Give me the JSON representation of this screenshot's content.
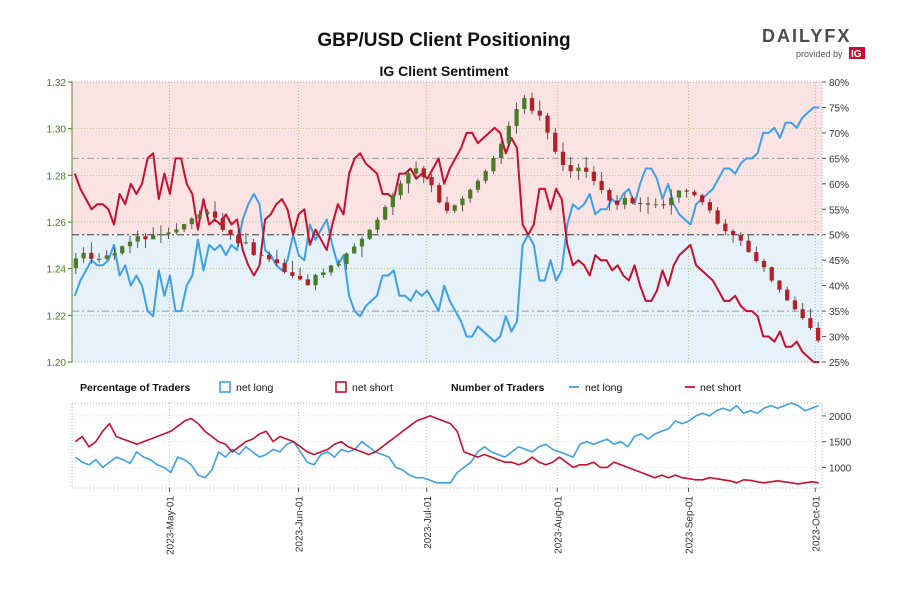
{
  "header": {
    "title": "GBP/USD Client Positioning",
    "logo_text": "DAILYFX",
    "logo_sub": "provided by",
    "logo_brand": "IG"
  },
  "chart_data": [
    {
      "type": "candlestick",
      "title": "IG Client Sentiment",
      "y_left_ticks": [
        "1.32",
        "1.30",
        "1.28",
        "1.26",
        "1.24",
        "1.22",
        "1.20"
      ],
      "ylim_left": [
        1.2,
        1.32
      ],
      "y_right_ticks": [
        "80%",
        "75%",
        "70%",
        "65%",
        "60%",
        "55%",
        "50%",
        "45%",
        "40%",
        "35%",
        "30%",
        "25%"
      ],
      "ylim_right": [
        25,
        80
      ],
      "reference_levels_percent": [
        50,
        65,
        35
      ],
      "candles": [
        [
          1.2403,
          1.2467,
          1.2377,
          1.2444
        ],
        [
          1.2444,
          1.2492,
          1.2424,
          1.2468
        ],
        [
          1.2468,
          1.2513,
          1.2422,
          1.2442
        ],
        [
          1.2442,
          1.2466,
          1.2423,
          1.2442
        ],
        [
          1.2442,
          1.2479,
          1.2438,
          1.2457
        ],
        [
          1.2457,
          1.2492,
          1.2436,
          1.2466
        ],
        [
          1.2466,
          1.25,
          1.2459,
          1.2496
        ],
        [
          1.2496,
          1.2541,
          1.2466,
          1.2516
        ],
        [
          1.2516,
          1.2563,
          1.2488,
          1.2539
        ],
        [
          1.2539,
          1.2553,
          1.2488,
          1.2526
        ],
        [
          1.2526,
          1.2578,
          1.2526,
          1.2543
        ],
        [
          1.2543,
          1.2585,
          1.251,
          1.2548
        ],
        [
          1.2548,
          1.2577,
          1.2527,
          1.2555
        ],
        [
          1.2555,
          1.2595,
          1.2547,
          1.2568
        ],
        [
          1.2568,
          1.2592,
          1.2556,
          1.2591
        ],
        [
          1.2591,
          1.2622,
          1.257,
          1.2615
        ],
        [
          1.2615,
          1.265,
          1.2605,
          1.2633
        ],
        [
          1.2633,
          1.2655,
          1.2618,
          1.2645
        ],
        [
          1.2645,
          1.2688,
          1.26,
          1.2618
        ],
        [
          1.2618,
          1.2639,
          1.2557,
          1.2566
        ],
        [
          1.2566,
          1.2569,
          1.2524,
          1.2543
        ],
        [
          1.2543,
          1.2568,
          1.2493,
          1.2509
        ],
        [
          1.2509,
          1.2553,
          1.2503,
          1.2513
        ],
        [
          1.2513,
          1.2528,
          1.2455,
          1.2459
        ],
        [
          1.2459,
          1.25,
          1.2456,
          1.2459
        ],
        [
          1.2459,
          1.2473,
          1.2428,
          1.244
        ],
        [
          1.244,
          1.248,
          1.2412,
          1.2424
        ],
        [
          1.2424,
          1.2443,
          1.2377,
          1.2385
        ],
        [
          1.2385,
          1.2433,
          1.236,
          1.2369
        ],
        [
          1.2369,
          1.2405,
          1.235,
          1.2354
        ],
        [
          1.2354,
          1.2376,
          1.2327,
          1.2329
        ],
        [
          1.2329,
          1.2378,
          1.2307,
          1.2373
        ],
        [
          1.2373,
          1.24,
          1.2361,
          1.2384
        ],
        [
          1.2384,
          1.2416,
          1.237,
          1.2414
        ],
        [
          1.2414,
          1.2439,
          1.2405,
          1.242
        ],
        [
          1.242,
          1.247,
          1.2395,
          1.2465
        ],
        [
          1.2465,
          1.2509,
          1.2465,
          1.2495
        ],
        [
          1.2495,
          1.2537,
          1.2449,
          1.2528
        ],
        [
          1.2528,
          1.257,
          1.2523,
          1.2567
        ],
        [
          1.2567,
          1.2621,
          1.2553,
          1.261
        ],
        [
          1.261,
          1.2673,
          1.2608,
          1.2664
        ],
        [
          1.2664,
          1.2726,
          1.263,
          1.2715
        ],
        [
          1.2715,
          1.2778,
          1.2697,
          1.2765
        ],
        [
          1.2765,
          1.2827,
          1.2723,
          1.2808
        ],
        [
          1.2808,
          1.286,
          1.2784,
          1.283
        ],
        [
          1.283,
          1.284,
          1.2767,
          1.2793
        ],
        [
          1.2793,
          1.2805,
          1.2728,
          1.2758
        ],
        [
          1.2758,
          1.2768,
          1.268,
          1.2684
        ],
        [
          1.2684,
          1.2708,
          1.2636,
          1.2648
        ],
        [
          1.2648,
          1.2675,
          1.2638,
          1.2672
        ],
        [
          1.2672,
          1.2711,
          1.2645,
          1.2701
        ],
        [
          1.2701,
          1.2744,
          1.2683,
          1.2738
        ],
        [
          1.2738,
          1.2785,
          1.2726,
          1.2777
        ],
        [
          1.2777,
          1.2826,
          1.2765,
          1.2818
        ],
        [
          1.2818,
          1.2883,
          1.2806,
          1.2874
        ],
        [
          1.2874,
          1.2947,
          1.2849,
          1.2936
        ],
        [
          1.2936,
          1.303,
          1.2924,
          1.3012
        ],
        [
          1.3012,
          1.3111,
          1.2979,
          1.3084
        ],
        [
          1.3084,
          1.3145,
          1.3064,
          1.3131
        ],
        [
          1.3131,
          1.3154,
          1.3061,
          1.3077
        ],
        [
          1.3077,
          1.3121,
          1.3035,
          1.3056
        ],
        [
          1.3056,
          1.3067,
          1.2954,
          1.2983
        ],
        [
          1.2983,
          1.3002,
          1.2891,
          1.2901
        ],
        [
          1.2901,
          1.2942,
          1.2818,
          1.2844
        ],
        [
          1.2844,
          1.2878,
          1.2788,
          1.2818
        ],
        [
          1.2818,
          1.285,
          1.278,
          1.2833
        ],
        [
          1.2833,
          1.2879,
          1.2789,
          1.2815
        ],
        [
          1.2815,
          1.284,
          1.2757,
          1.2776
        ],
        [
          1.2776,
          1.2814,
          1.2721,
          1.2737
        ],
        [
          1.2737,
          1.2744,
          1.2649,
          1.2692
        ],
        [
          1.2692,
          1.2716,
          1.2651,
          1.2674
        ],
        [
          1.2674,
          1.2722,
          1.2655,
          1.2703
        ],
        [
          1.2703,
          1.2711,
          1.2676,
          1.2681
        ],
        [
          1.2681,
          1.2705,
          1.2644,
          1.268
        ],
        [
          1.268,
          1.2708,
          1.2635,
          1.2675
        ],
        [
          1.2675,
          1.2702,
          1.266,
          1.2676
        ],
        [
          1.2676,
          1.2693,
          1.2657,
          1.2672
        ],
        [
          1.2672,
          1.274,
          1.2632,
          1.2705
        ],
        [
          1.2705,
          1.2737,
          1.2682,
          1.2735
        ],
        [
          1.2735,
          1.2743,
          1.2704,
          1.273
        ],
        [
          1.273,
          1.2738,
          1.2709,
          1.2715
        ],
        [
          1.2715,
          1.2722,
          1.2671,
          1.2685
        ],
        [
          1.2685,
          1.27,
          1.2637,
          1.265
        ],
        [
          1.265,
          1.2664,
          1.2589,
          1.2593
        ],
        [
          1.2593,
          1.2611,
          1.2543,
          1.2561
        ],
        [
          1.2561,
          1.2569,
          1.2512,
          1.2544
        ],
        [
          1.2544,
          1.2557,
          1.2497,
          1.252
        ],
        [
          1.252,
          1.2542,
          1.2468,
          1.2471
        ],
        [
          1.2471,
          1.2495,
          1.2426,
          1.2433
        ],
        [
          1.2433,
          1.2443,
          1.2386,
          1.2406
        ],
        [
          1.2406,
          1.241,
          1.2341,
          1.2349
        ],
        [
          1.2349,
          1.2351,
          1.2297,
          1.231
        ],
        [
          1.231,
          1.2323,
          1.2263,
          1.2264
        ],
        [
          1.2264,
          1.228,
          1.2221,
          1.2226
        ],
        [
          1.2226,
          1.2253,
          1.2181,
          1.2188
        ],
        [
          1.2188,
          1.2228,
          1.2137,
          1.2146
        ],
        [
          1.2146,
          1.217,
          1.2083,
          1.2092
        ]
      ],
      "net_long_percent": [
        38,
        41,
        43,
        45,
        44,
        44,
        45,
        48,
        42,
        44,
        40,
        42,
        40,
        35,
        34,
        43,
        38,
        42,
        35,
        35,
        40,
        42,
        49,
        43,
        48,
        47,
        48,
        46,
        48,
        47,
        53,
        56,
        58,
        56,
        47,
        46,
        44,
        43,
        45,
        50,
        46,
        45,
        52,
        49,
        51,
        53,
        48,
        44,
        46,
        38,
        35,
        34,
        36,
        37,
        38,
        42,
        42,
        43,
        38,
        38,
        37,
        39,
        38,
        39,
        37,
        35,
        40,
        37,
        35,
        33,
        30,
        30,
        32,
        31,
        30,
        29,
        30,
        34,
        31,
        33,
        48,
        50,
        48,
        41,
        41,
        45,
        41,
        43,
        52,
        56,
        55,
        56,
        58,
        54,
        55,
        55,
        57,
        56,
        58,
        59,
        56,
        60,
        63,
        63,
        61,
        57,
        60,
        56,
        54,
        53,
        52,
        56,
        57,
        58,
        59,
        61,
        63,
        63,
        62,
        64,
        65,
        65,
        66,
        70,
        70,
        71,
        69,
        72,
        72,
        71,
        73,
        74,
        75,
        75
      ],
      "net_short_percent": [
        62,
        59,
        57,
        55,
        56,
        56,
        55,
        52,
        58,
        56,
        60,
        58,
        60,
        65,
        66,
        57,
        62,
        58,
        65,
        65,
        60,
        58,
        51,
        57,
        52,
        53,
        52,
        54,
        52,
        53,
        47,
        44,
        42,
        44,
        53,
        54,
        56,
        57,
        55,
        50,
        54,
        55,
        48,
        51,
        49,
        47,
        52,
        56,
        54,
        62,
        65,
        66,
        64,
        63,
        62,
        58,
        58,
        57,
        62,
        62,
        63,
        61,
        62,
        61,
        63,
        65,
        60,
        63,
        65,
        67,
        70,
        70,
        68,
        69,
        70,
        71,
        70,
        66,
        69,
        67,
        52,
        50,
        52,
        59,
        59,
        55,
        59,
        57,
        48,
        44,
        45,
        44,
        42,
        46,
        45,
        45,
        43,
        44,
        42,
        41,
        44,
        40,
        37,
        37,
        39,
        43,
        40,
        44,
        46,
        47,
        48,
        44,
        43,
        42,
        41,
        39,
        37,
        37,
        38,
        36,
        35,
        35,
        34,
        30,
        30,
        29,
        31,
        28,
        28,
        29,
        27,
        26,
        25,
        25
      ]
    },
    {
      "type": "line",
      "title": "Number of Traders",
      "y_ticks": [
        "2000",
        "1500",
        "1000"
      ],
      "ylim": [
        600,
        2250
      ],
      "x_ticks": [
        "2023-May-01",
        "2023-Jun-01",
        "2023-Jul-01",
        "2023-Aug-01",
        "2023-Sep-01",
        "2023-Oct-01"
      ],
      "series": [
        {
          "name": "net long",
          "values": [
            1200,
            1100,
            1050,
            1150,
            1000,
            1100,
            1200,
            1150,
            1080,
            1300,
            1200,
            1150,
            1050,
            1000,
            900,
            1200,
            1150,
            1050,
            850,
            800,
            950,
            1300,
            1200,
            1350,
            1250,
            1400,
            1300,
            1200,
            1250,
            1350,
            1300,
            1450,
            1500,
            1300,
            1100,
            1050,
            1250,
            1300,
            1200,
            1350,
            1300,
            1350,
            1500,
            1400,
            1300,
            1250,
            1200,
            1000,
            950,
            850,
            800,
            800,
            750,
            700,
            700,
            700,
            900,
            1000,
            1100,
            1300,
            1400,
            1300,
            1250,
            1200,
            1300,
            1400,
            1350,
            1300,
            1400,
            1450,
            1350,
            1300,
            1250,
            1200,
            1450,
            1500,
            1450,
            1500,
            1550,
            1450,
            1500,
            1400,
            1600,
            1650,
            1550,
            1650,
            1700,
            1750,
            1900,
            1850,
            1900,
            2000,
            2050,
            2000,
            2100,
            2150,
            2100,
            2200,
            2050,
            2100,
            2050,
            2150,
            2200,
            2150,
            2200,
            2250,
            2200,
            2100,
            2150,
            2200
          ]
        },
        {
          "name": "net short",
          "values": [
            1500,
            1600,
            1400,
            1500,
            1700,
            1850,
            1600,
            1550,
            1500,
            1450,
            1500,
            1550,
            1600,
            1650,
            1700,
            1800,
            1900,
            1950,
            1850,
            1700,
            1600,
            1500,
            1450,
            1300,
            1400,
            1500,
            1550,
            1650,
            1700,
            1500,
            1600,
            1550,
            1500,
            1400,
            1300,
            1250,
            1300,
            1350,
            1450,
            1500,
            1400,
            1350,
            1300,
            1250,
            1300,
            1400,
            1500,
            1600,
            1700,
            1800,
            1900,
            1950,
            2000,
            1950,
            1900,
            1850,
            1700,
            1300,
            1250,
            1200,
            1250,
            1200,
            1150,
            1100,
            1100,
            1050,
            1100,
            1200,
            1100,
            1050,
            1100,
            1200,
            1100,
            1000,
            1050,
            1050,
            1100,
            1000,
            1000,
            1100,
            1050,
            1000,
            950,
            900,
            850,
            800,
            850,
            800,
            850,
            800,
            780,
            760,
            760,
            800,
            780,
            760,
            740,
            700,
            760,
            750,
            720,
            700,
            720,
            740,
            720,
            700,
            680,
            700,
            720,
            700
          ]
        }
      ]
    }
  ],
  "legend": {
    "pct_heading": "Percentage of Traders",
    "num_heading": "Number of Traders",
    "pct_long": "net long",
    "pct_short": "net short",
    "num_long": "net long",
    "num_short": "net short"
  },
  "colors": {
    "long": "#3ea0e8",
    "short": "#c8102e",
    "candle_up": "#4b7a28",
    "candle_down": "#b22028",
    "top_bg": "#fbe3e3",
    "bottom_bg": "#e6f1fa",
    "axis_green": "#4a7a1a"
  }
}
